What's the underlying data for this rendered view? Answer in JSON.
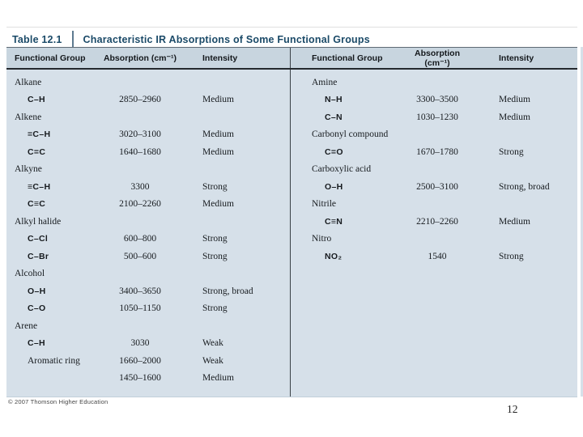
{
  "colors": {
    "title_color": "#1b4a68",
    "header_bg": "#c8d5df",
    "body_bg": "#d6e0e9"
  },
  "table": {
    "label": "Table 12.1",
    "title": "Characteristic IR Absorptions of Some Functional Groups",
    "columns": [
      "Functional Group",
      "Absorption (cm⁻¹)",
      "Intensity"
    ],
    "left_rows": [
      {
        "kind": "group",
        "name": "Alkane",
        "abs": "",
        "intensity": ""
      },
      {
        "kind": "formula",
        "name": "C–H",
        "abs": "2850–2960",
        "intensity": "Medium"
      },
      {
        "kind": "group",
        "name": "Alkene",
        "abs": "",
        "intensity": ""
      },
      {
        "kind": "formula",
        "name": "=C–H",
        "abs": "3020–3100",
        "intensity": "Medium"
      },
      {
        "kind": "formula",
        "name": "C=C",
        "abs": "1640–1680",
        "intensity": "Medium"
      },
      {
        "kind": "group",
        "name": "Alkyne",
        "abs": "",
        "intensity": ""
      },
      {
        "kind": "formula",
        "name": "≡C–H",
        "abs": "3300",
        "intensity": "Strong"
      },
      {
        "kind": "formula",
        "name": "C≡C",
        "abs": "2100–2260",
        "intensity": "Medium"
      },
      {
        "kind": "group",
        "name": "Alkyl halide",
        "abs": "",
        "intensity": ""
      },
      {
        "kind": "formula",
        "name": "C–Cl",
        "abs": "600–800",
        "intensity": "Strong"
      },
      {
        "kind": "formula",
        "name": "C–Br",
        "abs": "500–600",
        "intensity": "Strong"
      },
      {
        "kind": "group",
        "name": "Alcohol",
        "abs": "",
        "intensity": ""
      },
      {
        "kind": "formula",
        "name": "O–H",
        "abs": "3400–3650",
        "intensity": "Strong, broad"
      },
      {
        "kind": "formula",
        "name": "C–O",
        "abs": "1050–1150",
        "intensity": "Strong"
      },
      {
        "kind": "group",
        "name": "Arene",
        "abs": "",
        "intensity": ""
      },
      {
        "kind": "formula",
        "name": "C–H",
        "abs": "3030",
        "intensity": "Weak"
      },
      {
        "kind": "text",
        "name": "Aromatic ring",
        "abs": "1660–2000",
        "intensity": "Weak"
      },
      {
        "kind": "text",
        "name": "",
        "abs": "1450–1600",
        "intensity": "Medium"
      }
    ],
    "right_rows": [
      {
        "kind": "group",
        "name": "Amine",
        "abs": "",
        "intensity": ""
      },
      {
        "kind": "formula",
        "name": "N–H",
        "abs": "3300–3500",
        "intensity": "Medium"
      },
      {
        "kind": "formula",
        "name": "C–N",
        "abs": "1030–1230",
        "intensity": "Medium"
      },
      {
        "kind": "group",
        "name": "Carbonyl compound",
        "abs": "",
        "intensity": ""
      },
      {
        "kind": "formula",
        "name": "C=O",
        "abs": "1670–1780",
        "intensity": "Strong"
      },
      {
        "kind": "group",
        "name": "Carboxylic acid",
        "abs": "",
        "intensity": ""
      },
      {
        "kind": "formula",
        "name": "O–H",
        "abs": "2500–3100",
        "intensity": "Strong, broad"
      },
      {
        "kind": "group",
        "name": "Nitrile",
        "abs": "",
        "intensity": ""
      },
      {
        "kind": "formula",
        "name": "C≡N",
        "abs": "2210–2260",
        "intensity": "Medium"
      },
      {
        "kind": "group",
        "name": "Nitro",
        "abs": "",
        "intensity": ""
      },
      {
        "kind": "formula",
        "name": "NO₂",
        "abs": "1540",
        "intensity": "Strong"
      }
    ]
  },
  "footer": {
    "copyright": "© 2007 Thomson Higher Education",
    "page_number": "12"
  }
}
